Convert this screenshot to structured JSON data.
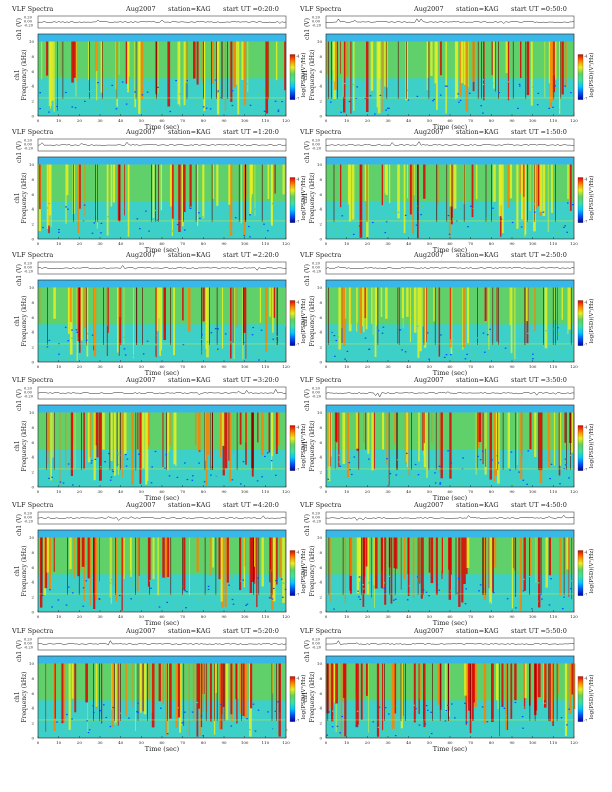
{
  "chart_data": {
    "type": "heatmap",
    "common": {
      "ylabel_top": "ch1 (V)",
      "ylabel_main": "Frequency (kHz)",
      "ylabel_ch": "ch1",
      "xlabel": "Time (sec)",
      "colorbar_label": "log(PSD)(V²/Hz)",
      "x_ticks": [
        "0",
        "10",
        "20",
        "30",
        "40",
        "50",
        "60",
        "70",
        "80",
        "90",
        "100",
        "110",
        "120"
      ],
      "y_ticks": [
        "0",
        "2",
        "4",
        "6",
        "8",
        "10"
      ],
      "top_y_ticks": [
        "0.20",
        "0.00",
        "-0.20"
      ],
      "xlim": [
        0,
        120
      ],
      "ylim": [
        0,
        11
      ],
      "colorbar_ticks": [
        "-4",
        "-7"
      ],
      "colorscale": [
        "#0000a0",
        "#0050ff",
        "#00c8ff",
        "#40e0a0",
        "#60d060",
        "#e8f020",
        "#ff8000",
        "#e00000"
      ]
    },
    "panels": [
      {
        "title": "VLF Spectra",
        "date": "Aug2007",
        "station": "station=KAG",
        "start": "start UT =0:20:0",
        "intensity": 0.35
      },
      {
        "title": "VLF Spectra",
        "date": "Aug2007",
        "station": "station=KAG",
        "start": "start UT =0:50:0",
        "intensity": 0.4
      },
      {
        "title": "VLF Spectra",
        "date": "Aug2007",
        "station": "station=KAG",
        "start": "start UT =1:20:0",
        "intensity": 0.3
      },
      {
        "title": "VLF Spectra",
        "date": "Aug2007",
        "station": "station=KAG",
        "start": "start UT =1:50:0",
        "intensity": 0.33
      },
      {
        "title": "VLF Spectra",
        "date": "Aug2007",
        "station": "station=KAG",
        "start": "start UT =2:20:0",
        "intensity": 0.32
      },
      {
        "title": "VLF Spectra",
        "date": "Aug2007",
        "station": "station=KAG",
        "start": "start UT =2:50:0",
        "intensity": 0.36
      },
      {
        "title": "VLF Spectra",
        "date": "Aug2007",
        "station": "station=KAG",
        "start": "start UT =3:20:0",
        "intensity": 0.62
      },
      {
        "title": "VLF Spectra",
        "date": "Aug2007",
        "station": "station=KAG",
        "start": "start UT =3:50:0",
        "intensity": 0.58
      },
      {
        "title": "VLF Spectra",
        "date": "Aug2007",
        "station": "station=KAG",
        "start": "start UT =4:20:0",
        "intensity": 0.75
      },
      {
        "title": "VLF Spectra",
        "date": "Aug2007",
        "station": "station=KAG",
        "start": "start UT =4:50:0",
        "intensity": 0.78
      },
      {
        "title": "VLF Spectra",
        "date": "Aug2007",
        "station": "station=KAG",
        "start": "start UT =5:20:0",
        "intensity": 0.7
      },
      {
        "title": "VLF Spectra",
        "date": "Aug2007",
        "station": "station=KAG",
        "start": "start UT =5:50:0",
        "intensity": 0.72
      }
    ]
  }
}
